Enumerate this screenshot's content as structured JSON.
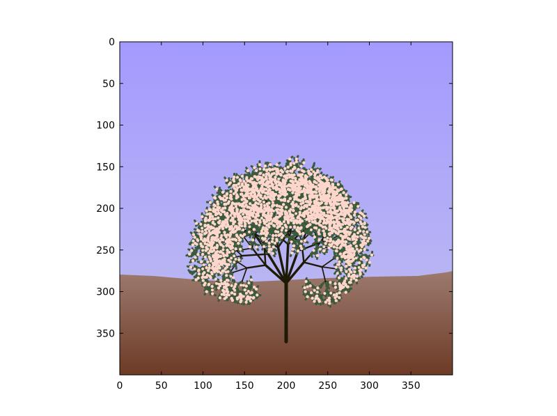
{
  "image": {
    "description": "Procedurally generated blossoming tree on a hill, displayed in a matplotlib imshow axes",
    "colors": {
      "sky_top": "#a39afe",
      "sky_bottom": "#c2c0f0",
      "ground_top": "#9c7a6e",
      "ground_bottom": "#6d3a26",
      "trunk": "#1e1a08",
      "leaf": "#3a5a3a",
      "blossom": "#ffd6cc"
    },
    "domain": {
      "x": [
        0,
        400
      ],
      "y": [
        0,
        400
      ]
    }
  },
  "axes": {
    "x_ticks": [
      "0",
      "50",
      "100",
      "150",
      "200",
      "250",
      "300",
      "350"
    ],
    "y_ticks": [
      "0",
      "50",
      "100",
      "150",
      "200",
      "250",
      "300",
      "350"
    ]
  }
}
